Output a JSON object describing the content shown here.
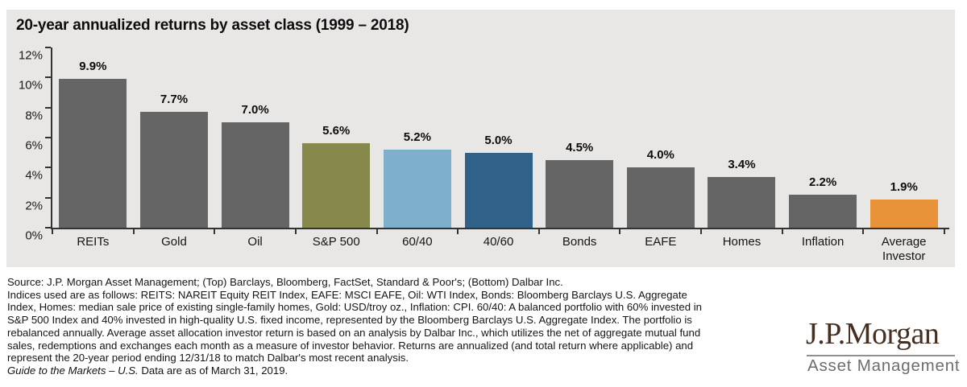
{
  "title": "20-year annualized returns by asset class (1999 – 2018)",
  "chart_data": {
    "type": "bar",
    "title": "20-year annualized returns by asset class (1999 – 2018)",
    "categories": [
      "REITs",
      "Gold",
      "Oil",
      "S&P 500",
      "60/40",
      "40/60",
      "Bonds",
      "EAFE",
      "Homes",
      "Inflation",
      "Average Investor"
    ],
    "values": [
      9.9,
      7.7,
      7.0,
      5.6,
      5.2,
      5.0,
      4.5,
      4.0,
      3.4,
      2.2,
      1.9
    ],
    "value_labels": [
      "9.9%",
      "7.7%",
      "7.0%",
      "5.6%",
      "5.2%",
      "5.0%",
      "4.5%",
      "4.0%",
      "3.4%",
      "2.2%",
      "1.9%"
    ],
    "bar_colors": [
      "#656565",
      "#656565",
      "#656565",
      "#86894b",
      "#7fb0cb",
      "#2f6189",
      "#656565",
      "#656565",
      "#656565",
      "#656565",
      "#e8923a"
    ],
    "xlabel": "",
    "ylabel": "",
    "ylim": [
      0,
      12
    ],
    "ytick_step": 2,
    "ytick_labels": [
      "0%",
      "2%",
      "4%",
      "6%",
      "8%",
      "10%",
      "12%"
    ],
    "grid": false,
    "legend": false,
    "background": "#e8e7e5"
  },
  "footnote": {
    "lines": [
      "Source: J.P. Morgan Asset Management; (Top) Barclays, Bloomberg, FactSet, Standard & Poor's; (Bottom) Dalbar Inc.",
      "Indices used are as follows: REITS: NAREIT Equity REIT Index, EAFE: MSCI EAFE, Oil: WTI Index, Bonds: Bloomberg Barclays U.S. Aggregate",
      "Index, Homes: median sale price of existing single-family homes, Gold: USD/troy oz., Inflation: CPI. 60/40: A balanced portfolio with 60% invested in",
      "S&P 500 Index and 40% invested in high-quality U.S. fixed income, represented by the Bloomberg Barclays U.S. Aggregate Index. The portfolio is",
      "rebalanced annually. Average asset allocation investor return is based on an analysis by Dalbar Inc., which utilizes the net of aggregate mutual fund",
      "sales, redemptions and exchanges each month as a measure of investor behavior. Returns are annualized (and total return where applicable) and",
      "represent the 20-year period ending 12/31/18 to match Dalbar's most recent analysis."
    ],
    "final_line": {
      "italic": "Guide to the Markets – U.S.",
      "regular": " Data are as of March 31, 2019."
    }
  },
  "logo": {
    "brand": "J.P.Morgan",
    "subtitle": "Asset Management",
    "brand_color": "#452f20",
    "subtitle_color": "#6d6d6d"
  }
}
